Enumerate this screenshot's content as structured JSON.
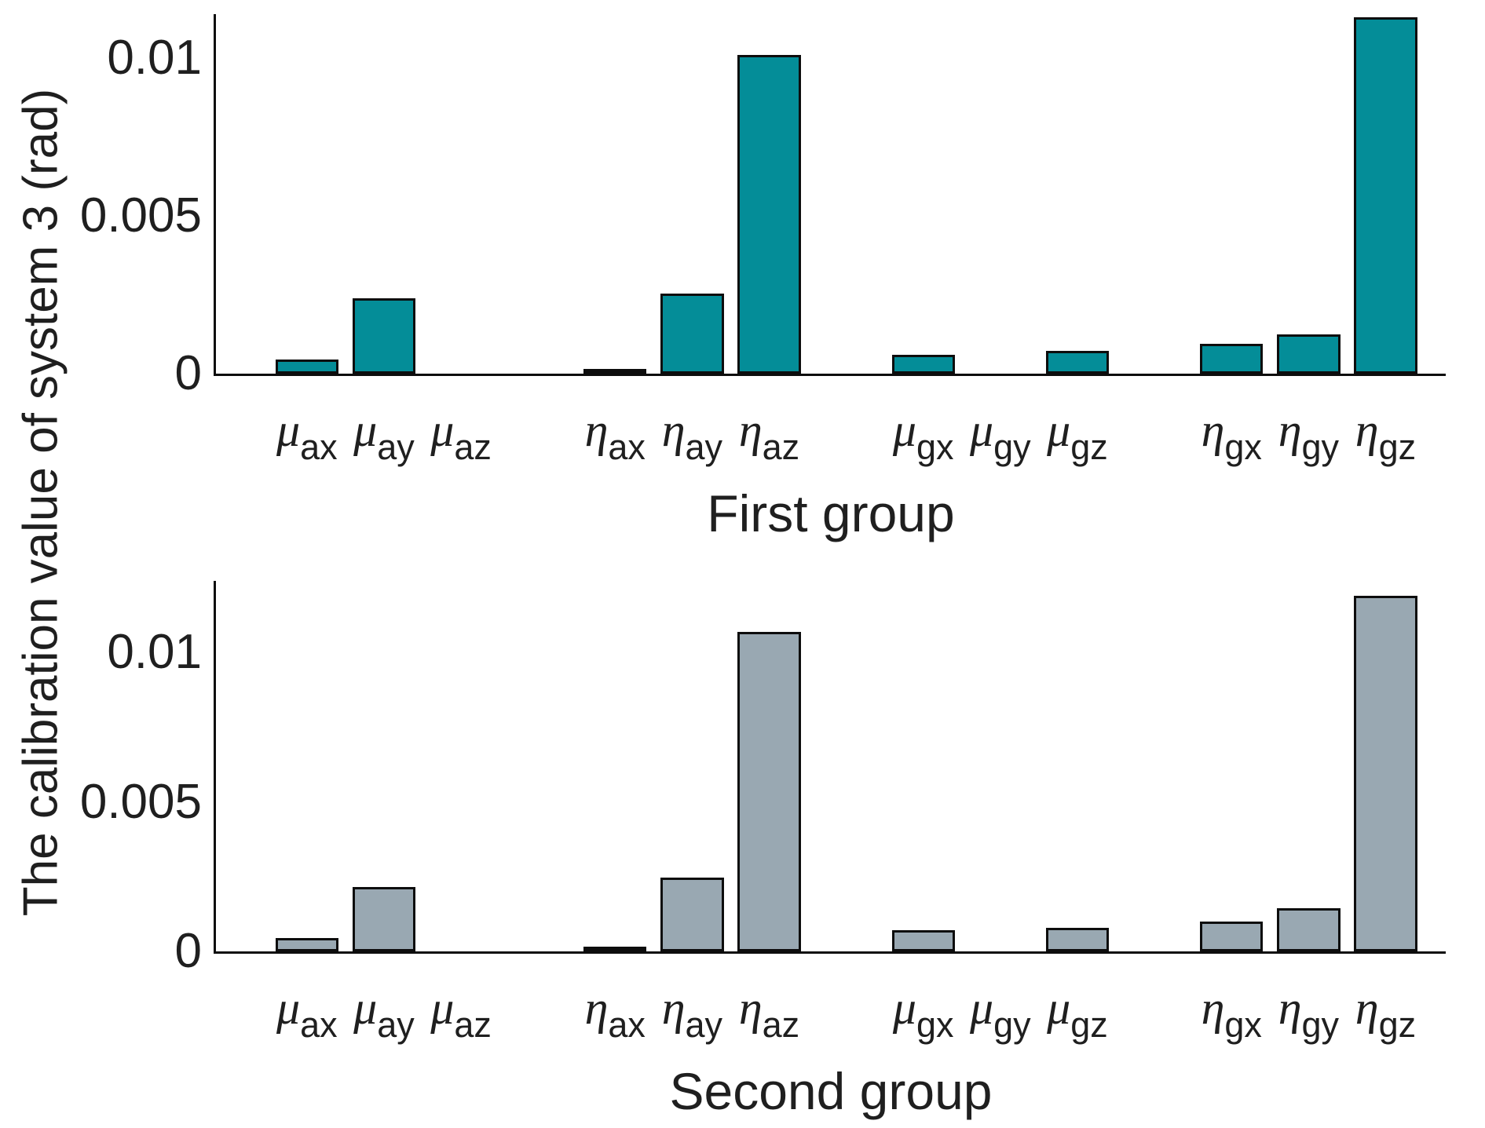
{
  "figure": {
    "ylabel": "The calibration value of system 3 (rad)",
    "text_color": "#1f1f1f",
    "axis_color": "#0d0d0d"
  },
  "chart_data": [
    {
      "type": "bar",
      "title": "",
      "xlabel": "First group",
      "ylabel": "The calibration value of system 3 (rad)",
      "bar_color": "#048d98",
      "edge_color": "#0d0d0d",
      "categories": [
        "μ_ax",
        "μ_ay",
        "μ_az",
        "η_ax",
        "η_ay",
        "η_az",
        "μ_gx",
        "μ_gy",
        "μ_gz",
        "η_gx",
        "η_gy",
        "η_gz"
      ],
      "tick_labels": [
        {
          "sym": "μ",
          "sub": "ax"
        },
        {
          "sym": "μ",
          "sub": "ay"
        },
        {
          "sym": "μ",
          "sub": "az"
        },
        {
          "sym": "η",
          "sub": "ax"
        },
        {
          "sym": "η",
          "sub": "ay"
        },
        {
          "sym": "η",
          "sub": "az"
        },
        {
          "sym": "μ",
          "sub": "gx"
        },
        {
          "sym": "μ",
          "sub": "gy"
        },
        {
          "sym": "μ",
          "sub": "gz"
        },
        {
          "sym": "η",
          "sub": "gx"
        },
        {
          "sym": "η",
          "sub": "gy"
        },
        {
          "sym": "η",
          "sub": "gz"
        }
      ],
      "values": [
        0.00045,
        0.00238,
        0,
        0.0001,
        0.00253,
        0.0101,
        0.0006,
        0,
        0.00073,
        0.00095,
        0.00125,
        0.0113
      ],
      "yticks": [
        0,
        0.005,
        0.01
      ],
      "ytick_labels": [
        "0",
        "0.005",
        "0.01"
      ],
      "ylim": [
        0,
        0.0114
      ],
      "grid": false,
      "legend": "none",
      "x_units": [
        1,
        2,
        3,
        5,
        6,
        7,
        9,
        10,
        11,
        13,
        14,
        15
      ],
      "x_pad": 0.18,
      "x_total": 15.96,
      "bar_width_units": 0.82
    },
    {
      "type": "bar",
      "title": "",
      "xlabel": "Second group",
      "ylabel": "The calibration value of system 3 (rad)",
      "bar_color": "#99a8b2",
      "edge_color": "#0d0d0d",
      "categories": [
        "μ_ax",
        "μ_ay",
        "μ_az",
        "η_ax",
        "η_ay",
        "η_az",
        "μ_gx",
        "μ_gy",
        "μ_gz",
        "η_gx",
        "η_gy",
        "η_gz"
      ],
      "tick_labels": [
        {
          "sym": "μ",
          "sub": "ax"
        },
        {
          "sym": "μ",
          "sub": "ay"
        },
        {
          "sym": "μ",
          "sub": "az"
        },
        {
          "sym": "η",
          "sub": "ax"
        },
        {
          "sym": "η",
          "sub": "ay"
        },
        {
          "sym": "η",
          "sub": "az"
        },
        {
          "sym": "μ",
          "sub": "gx"
        },
        {
          "sym": "μ",
          "sub": "gy"
        },
        {
          "sym": "μ",
          "sub": "gz"
        },
        {
          "sym": "η",
          "sub": "gx"
        },
        {
          "sym": "η",
          "sub": "gy"
        },
        {
          "sym": "η",
          "sub": "gz"
        }
      ],
      "values": [
        0.00045,
        0.00216,
        0,
        0.0001,
        0.00247,
        0.0107,
        0.0007,
        0,
        0.0008,
        0.001,
        0.00145,
        0.0119
      ],
      "yticks": [
        0,
        0.005,
        0.01
      ],
      "ytick_labels": [
        "0",
        "0.005",
        "0.01"
      ],
      "ylim": [
        0,
        0.0124
      ],
      "grid": false,
      "legend": "none",
      "x_units": [
        1,
        2,
        3,
        5,
        6,
        7,
        9,
        10,
        11,
        13,
        14,
        15
      ],
      "x_pad": 0.18,
      "x_total": 15.96,
      "bar_width_units": 0.82
    }
  ]
}
